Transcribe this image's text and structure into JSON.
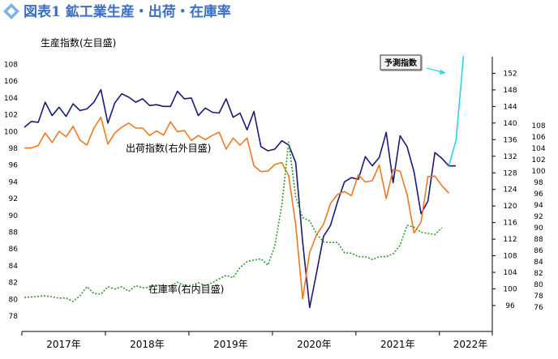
{
  "title": "図表1 鉱工業生産・出荷・在庫率",
  "chart_data": {
    "type": "line",
    "x_labels": [
      "2017年",
      "2018年",
      "2019年",
      "2020年",
      "2021年",
      "2022年"
    ],
    "axes": {
      "left": {
        "ticks": [
          78,
          80,
          82,
          84,
          86,
          88,
          90,
          92,
          94,
          96,
          98,
          100,
          102,
          104,
          106,
          108
        ]
      },
      "right_outer": {
        "ticks": [
          96,
          100,
          104,
          108,
          112,
          116,
          120,
          124,
          128,
          132,
          136,
          140,
          144,
          148,
          152
        ]
      },
      "right_inner": {
        "ticks": [
          76,
          78,
          80,
          82,
          84,
          86,
          88,
          90,
          92,
          94,
          96,
          98,
          100,
          102,
          104,
          106,
          108
        ]
      }
    },
    "series": [
      {
        "name": "生産指数(左目盛)",
        "axis": "left",
        "color": "#1a1a7a",
        "values": [
          100.5,
          101.2,
          101.1,
          103.5,
          101.9,
          102.9,
          101.8,
          103.3,
          102.5,
          102.7,
          103.5,
          105.0,
          101.0,
          103.4,
          104.5,
          104.1,
          103.5,
          103.9,
          103.1,
          103.2,
          103.0,
          103.0,
          104.8,
          103.9,
          104.0,
          101.9,
          102.8,
          102.3,
          102.2,
          103.9,
          101.7,
          102.2,
          100.2,
          102.4,
          98.2,
          97.7,
          97.9,
          98.9,
          98.4,
          96.3,
          86.8,
          79.0,
          83.2,
          87.5,
          88.8,
          91.6,
          94.0,
          94.5,
          94.3,
          97.0,
          95.9,
          96.9,
          99.9,
          93.9,
          99.5,
          98.2,
          95.2,
          90.2,
          91.7,
          97.5,
          96.8,
          95.9,
          95.9
        ]
      },
      {
        "name": "出荷指数(右外目盛)",
        "axis": "right_outer",
        "color": "#f07820",
        "values": [
          134,
          134,
          134.6,
          137.6,
          135.3,
          138,
          136.7,
          139.2,
          135.9,
          134.7,
          138.8,
          141.4,
          134.9,
          137.6,
          139,
          140,
          138.8,
          138.8,
          137,
          138.1,
          137.1,
          140.3,
          137.9,
          138.2,
          135.8,
          137,
          136,
          137,
          137.8,
          133.7,
          136.4,
          134.7,
          136.4,
          129.7,
          128.3,
          128.4,
          130,
          130.5,
          127.2,
          115.5,
          97.6,
          108.8,
          113.1,
          115.6,
          120.6,
          122.8,
          123.5,
          122.5,
          127.5,
          125.8,
          126.1,
          129.9,
          121.8,
          128.8,
          128.4,
          122.8,
          113.5,
          116.1,
          127.1,
          127.2,
          124.9,
          123.1
        ]
      },
      {
        "name": "在庫率(右内目盛)",
        "axis": "right_inner",
        "color": "#2e9a2e",
        "values": [
          77.7,
          77.8,
          77.9,
          78.0,
          77.8,
          77.6,
          77.6,
          77.0,
          78.0,
          79.6,
          78.4,
          78.3,
          79.6,
          79.2,
          79.6,
          78.8,
          79.8,
          79.4,
          79.5,
          79.9,
          79.8,
          79.7,
          80.4,
          79.8,
          79.8,
          80.3,
          79.8,
          80.3,
          81.0,
          81.6,
          81.2,
          83.0,
          84.0,
          84.3,
          84.5,
          83.4,
          86.8,
          94.0,
          105.1,
          95.4,
          91.8,
          91.2,
          88.9,
          87.5,
          87.4,
          87.4,
          85.6,
          85.5,
          84.9,
          84.9,
          84.4,
          84.9,
          84.9,
          85.4,
          86.9,
          90.4,
          90.1,
          89.2,
          89.0,
          88.8,
          90.0
        ]
      },
      {
        "name": "予測指数",
        "axis": "left",
        "color": "#29d4e8",
        "values": [
          95.9,
          99.0,
          109.0
        ],
        "start_index": 61
      }
    ]
  }
}
